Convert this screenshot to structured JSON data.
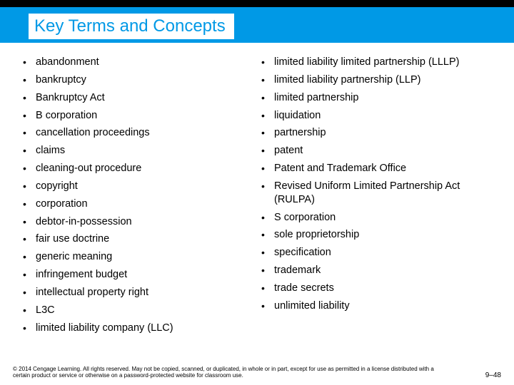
{
  "title": "Key Terms and Concepts",
  "left_terms": [
    "abandonment",
    "bankruptcy",
    "Bankruptcy Act",
    "B corporation",
    "cancellation proceedings",
    "claims",
    "cleaning-out procedure",
    "copyright",
    "corporation",
    "debtor-in-possession",
    "fair use doctrine",
    "generic meaning",
    "infringement budget",
    "intellectual property right",
    "L3C",
    "limited liability company (LLC)"
  ],
  "right_terms": [
    "limited liability limited partnership (LLLP)",
    "limited liability partnership (LLP)",
    "limited partnership",
    "liquidation",
    "partnership",
    "patent",
    "Patent and Trademark Office",
    "Revised Uniform Limited Partnership Act (RULPA)",
    "S corporation",
    "sole proprietorship",
    "specification",
    "trademark",
    "trade secrets",
    "unlimited liability"
  ],
  "copyright": "© 2014 Cengage Learning. All rights reserved. May not be copied, scanned, or duplicated, in whole or in part, except for use as permitted in a license distributed with a certain product or service or otherwise on a password-protected website for classroom use.",
  "page_number": "9–48",
  "colors": {
    "brand_blue": "#0099e6",
    "black": "#000000",
    "white": "#ffffff"
  }
}
